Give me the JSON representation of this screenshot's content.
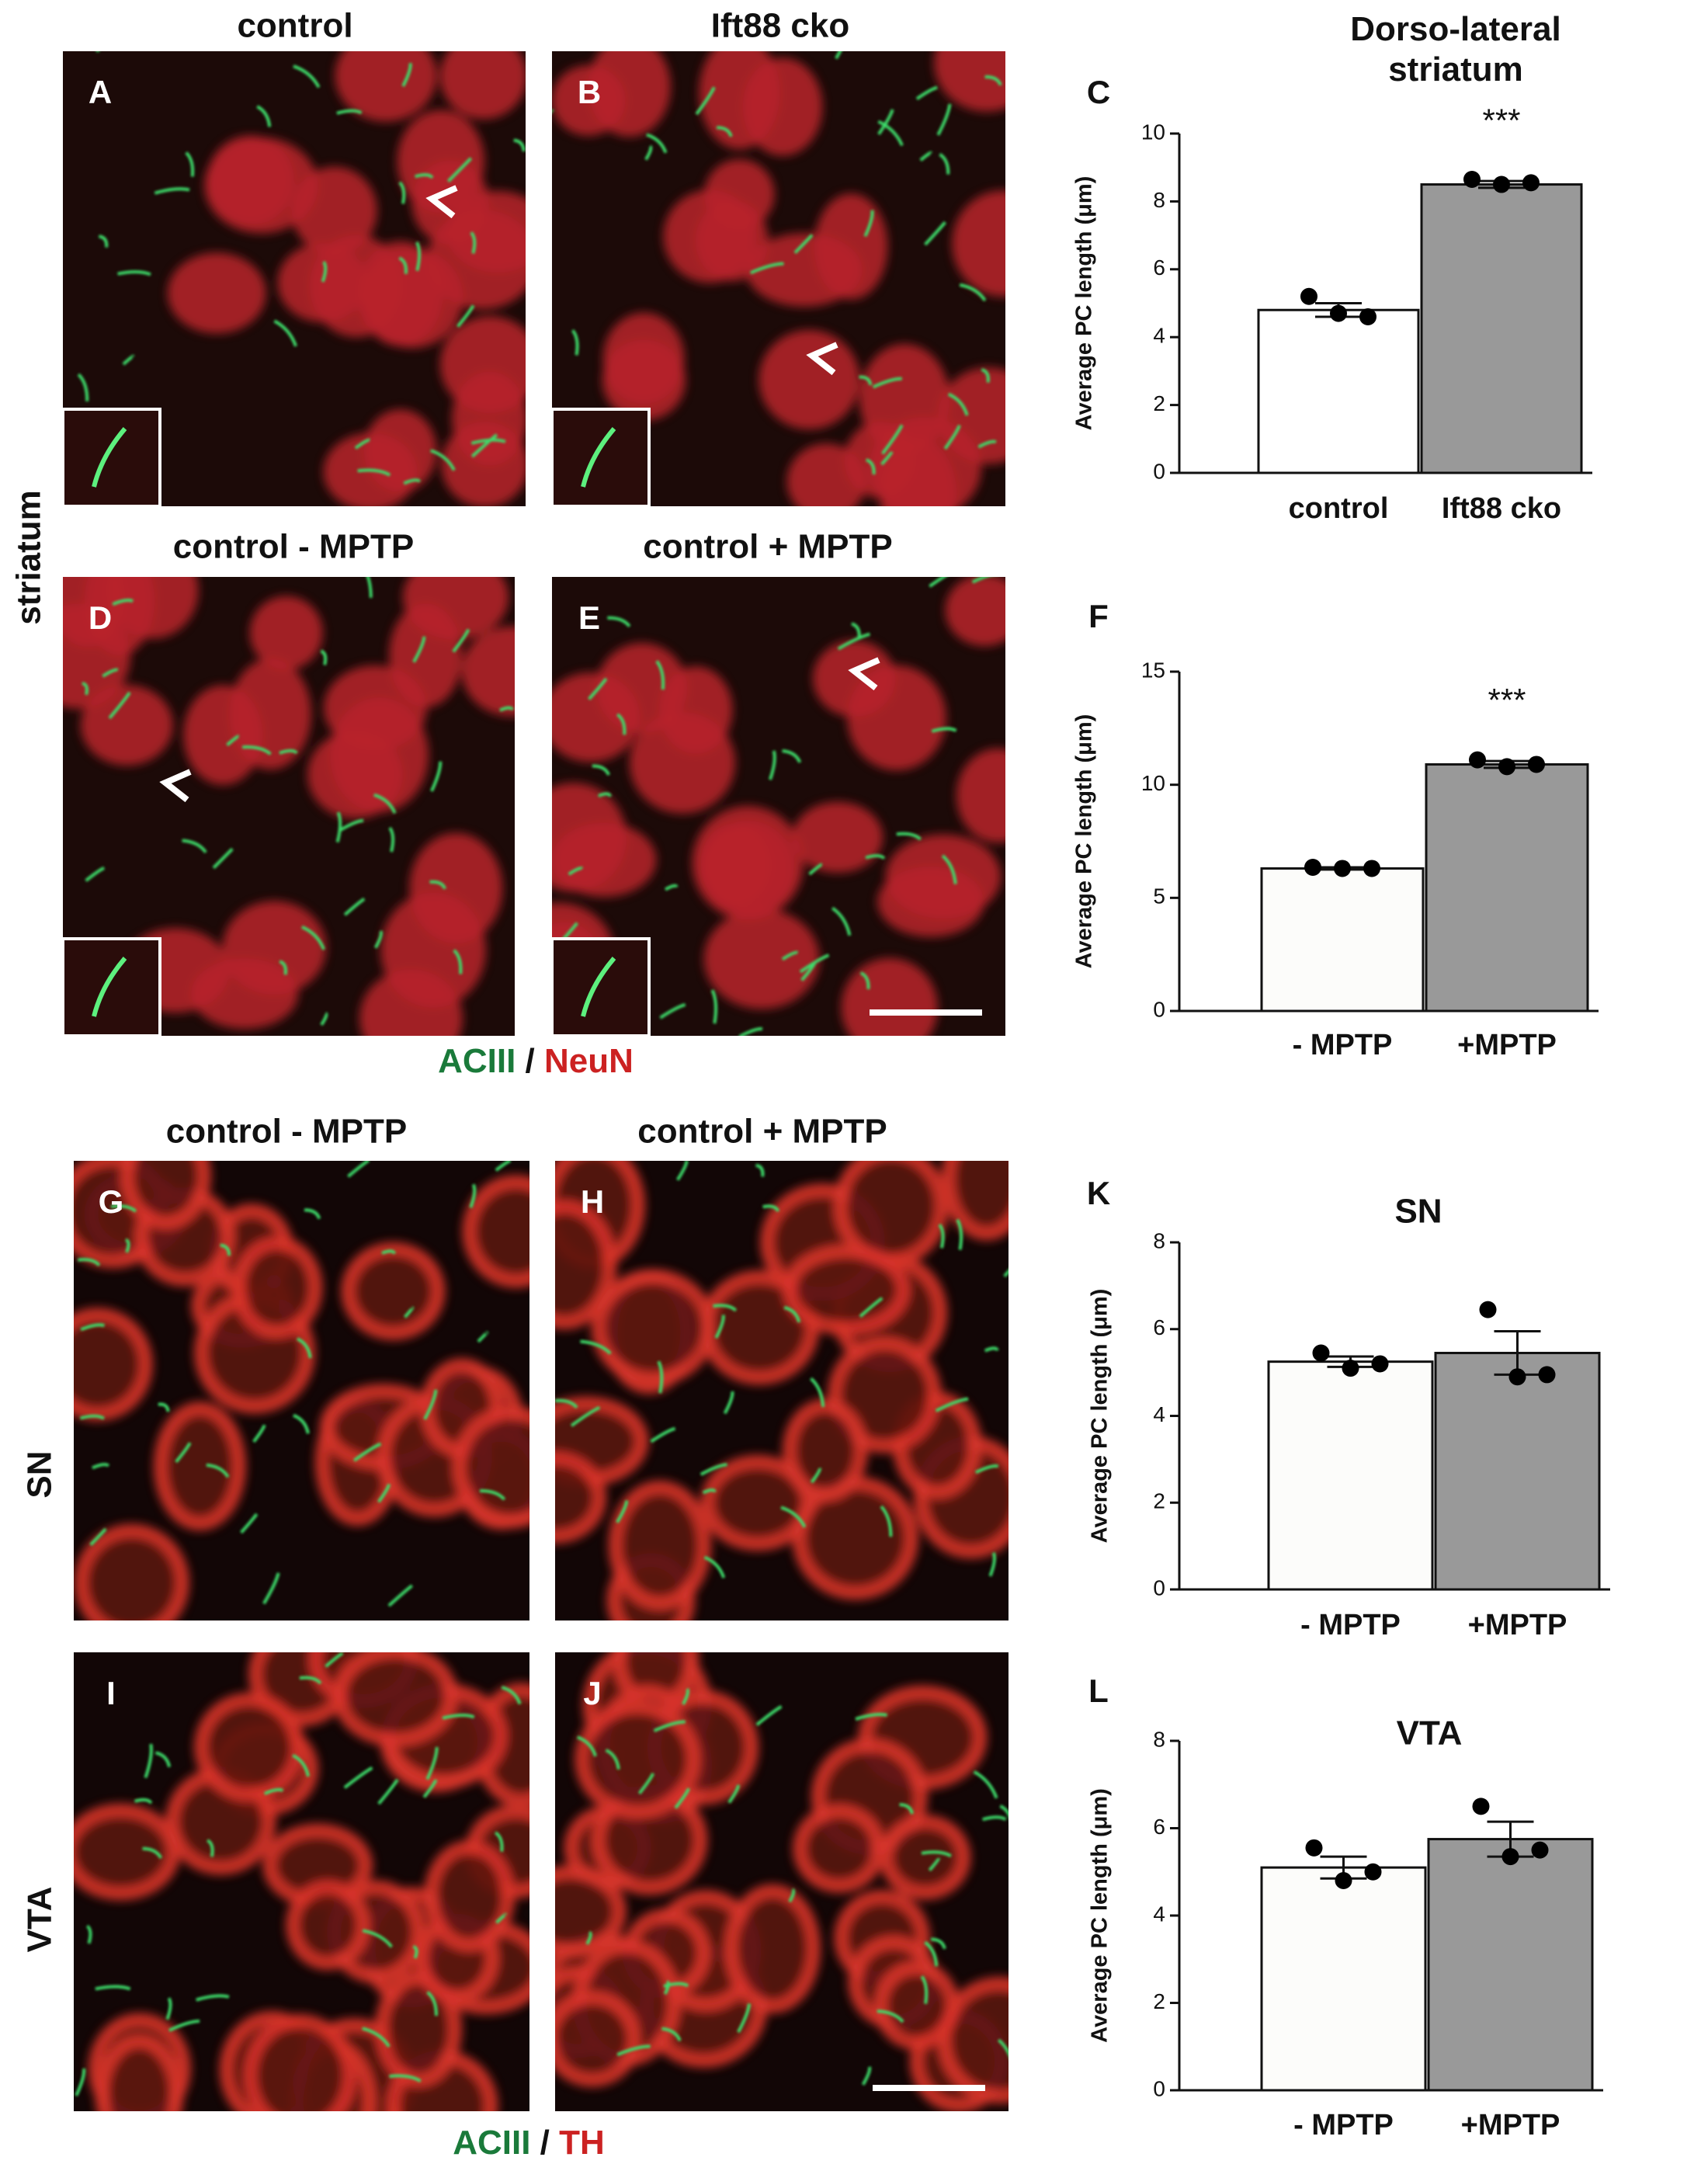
{
  "figure": {
    "image_panels": [
      {
        "letter": "A",
        "title": "control"
      },
      {
        "letter": "B",
        "title": "Ift88 cko"
      },
      {
        "letter": "D",
        "title": "control - MPTP"
      },
      {
        "letter": "E",
        "title": "control + MPTP"
      },
      {
        "letter": "G",
        "title": "control - MPTP"
      },
      {
        "letter": "H",
        "title": "control + MPTP"
      },
      {
        "letter": "I"
      },
      {
        "letter": "J"
      }
    ],
    "row_labels": [
      "striatum",
      "SN",
      "VTA"
    ],
    "legends": [
      [
        "ACIII",
        "/",
        "NeuN"
      ],
      [
        "ACIII",
        "/",
        "TH"
      ]
    ]
  },
  "chart_data": [
    {
      "type": "bar",
      "panel": "C",
      "title": "Dorso-lateral striatum",
      "ylabel": "Average PC length (μm)",
      "categories": [
        "control",
        "Ift88 cko"
      ],
      "values": [
        4.8,
        8.5
      ],
      "errors": [
        0.2,
        0.1
      ],
      "points": [
        [
          5.2,
          4.7,
          4.6
        ],
        [
          8.65,
          8.5,
          8.55
        ]
      ],
      "colors": [
        "#ffffff",
        "#999999"
      ],
      "annotation": "***",
      "ylim": [
        0,
        10
      ],
      "yticks": [
        0,
        2,
        4,
        6,
        8,
        10
      ]
    },
    {
      "type": "bar",
      "panel": "F",
      "ylabel": "Average PC length (μm)",
      "categories": [
        "- MPTP",
        "+MPTP"
      ],
      "values": [
        6.3,
        10.9
      ],
      "errors": [
        0.05,
        0.15
      ],
      "points": [
        [
          6.35,
          6.3,
          6.3
        ],
        [
          11.1,
          10.8,
          10.9
        ]
      ],
      "colors": [
        "#fcfcfa",
        "#999999"
      ],
      "annotation": "***",
      "ylim": [
        0,
        15
      ],
      "yticks": [
        0,
        5,
        10,
        15
      ]
    },
    {
      "type": "bar",
      "panel": "K",
      "title": "SN",
      "ylabel": "Average PC length (μm)",
      "categories": [
        "- MPTP",
        "+MPTP"
      ],
      "values": [
        5.25,
        5.45
      ],
      "errors": [
        0.12,
        0.5
      ],
      "points": [
        [
          5.45,
          5.1,
          5.2
        ],
        [
          6.45,
          4.9,
          4.95
        ]
      ],
      "colors": [
        "#fcfcfa",
        "#999999"
      ],
      "ylim": [
        0,
        8
      ],
      "yticks": [
        0,
        2,
        4,
        6,
        8
      ]
    },
    {
      "type": "bar",
      "panel": "L",
      "title": "VTA",
      "ylabel": "Average PC length (μm)",
      "categories": [
        "- MPTP",
        "+MPTP"
      ],
      "values": [
        5.1,
        5.75
      ],
      "errors": [
        0.25,
        0.4
      ],
      "points": [
        [
          5.55,
          4.8,
          5.0
        ],
        [
          6.5,
          5.35,
          5.5
        ]
      ],
      "colors": [
        "#fcfcfa",
        "#999999"
      ],
      "ylim": [
        0,
        8
      ],
      "yticks": [
        0,
        2,
        4,
        6,
        8
      ]
    }
  ]
}
